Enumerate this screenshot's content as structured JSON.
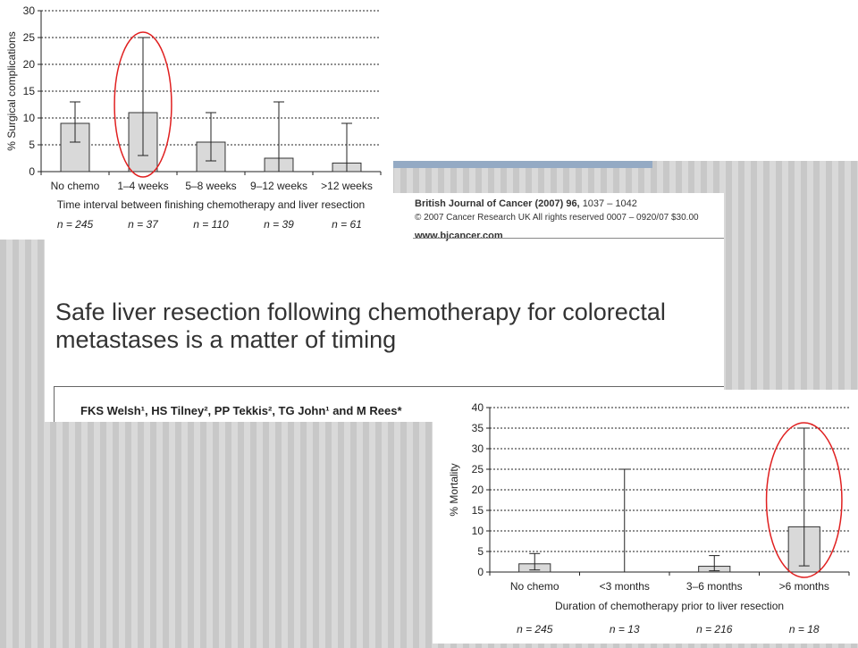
{
  "paper": {
    "journal_name": "British Journal of Cancer (2007) 96,",
    "journal_pages": "1037 – 1042",
    "copyright": "© 2007 Cancer Research UK   All rights reserved 0007 – 0920/07   $30.00",
    "url": "www.bjcancer.com",
    "title": "Safe liver resection following chemotherapy for colorectal metastases is a matter of timing",
    "authors": "FKS Welsh¹, HS Tilney², PP Tekkis², TG John¹ and M Rees*"
  },
  "chart_data": [
    {
      "type": "bar",
      "ylabel": "% Surgical complications",
      "xlabel": "Time interval between finishing chemotherapy and liver resection",
      "categories": [
        "No chemo",
        "1–4 weeks",
        "5–8 weeks",
        "9–12 weeks",
        ">12 weeks"
      ],
      "values": [
        9,
        11,
        5.5,
        2.5,
        1.6
      ],
      "error_low": [
        5.5,
        3,
        2,
        0,
        0
      ],
      "error_high": [
        13,
        25,
        11,
        13,
        9
      ],
      "n_labels": [
        "n = 245",
        "n = 37",
        "n = 110",
        "n = 39",
        "n = 61"
      ],
      "ylim": [
        0,
        30
      ],
      "yticks": [
        0,
        5,
        10,
        15,
        20,
        25,
        30
      ],
      "grid": true,
      "highlight_index": 1,
      "bar_color": "#d9d9d9",
      "highlight_color": "#e02020"
    },
    {
      "type": "bar",
      "ylabel": "% Mortality",
      "xlabel": "Duration of chemotherapy prior to liver resection",
      "categories": [
        "No chemo",
        "<3 months",
        "3–6 months",
        ">6 months"
      ],
      "values": [
        2,
        0,
        1.4,
        11
      ],
      "error_low": [
        0.5,
        0,
        0.3,
        1.5
      ],
      "error_high": [
        4.5,
        25,
        4,
        35
      ],
      "n_labels": [
        "n = 245",
        "n = 13",
        "n = 216",
        "n = 18"
      ],
      "ylim": [
        0,
        40
      ],
      "yticks": [
        0,
        5,
        10,
        15,
        20,
        25,
        30,
        35,
        40
      ],
      "grid": true,
      "highlight_index": 3,
      "bar_color": "#d9d9d9",
      "highlight_color": "#e02020"
    }
  ]
}
